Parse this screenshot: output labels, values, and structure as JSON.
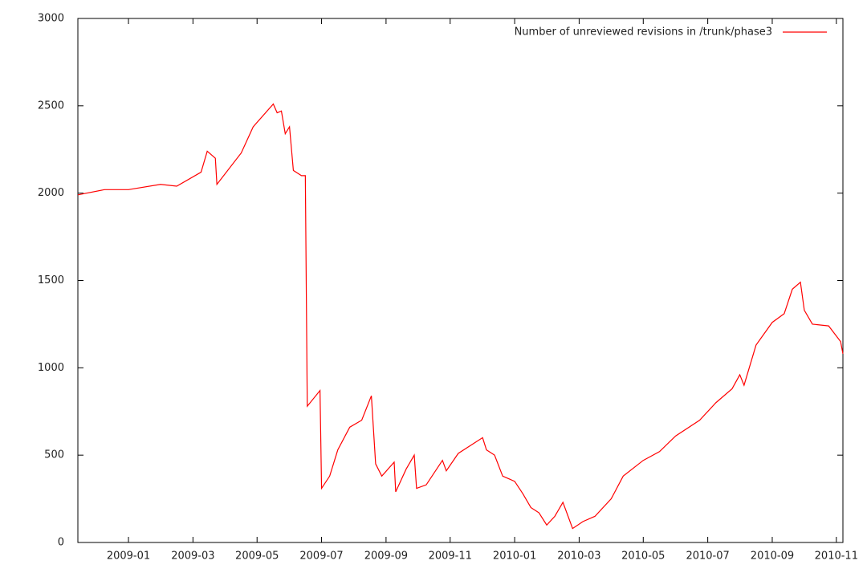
{
  "chart_data": {
    "type": "line",
    "x": [
      2008.869,
      2008.938,
      2009.0,
      2009.083,
      2009.125,
      2009.188,
      2009.204,
      2009.225,
      2009.229,
      2009.292,
      2009.323,
      2009.375,
      2009.385,
      2009.396,
      2009.406,
      2009.417,
      2009.427,
      2009.448,
      2009.458,
      2009.463,
      2009.496,
      2009.5,
      2009.521,
      2009.542,
      2009.573,
      2009.604,
      2009.629,
      2009.64,
      2009.656,
      2009.688,
      2009.692,
      2009.719,
      2009.74,
      2009.746,
      2009.771,
      2009.813,
      2009.823,
      2009.854,
      2009.917,
      2009.927,
      2009.948,
      2009.969,
      2010.0,
      2010.021,
      2010.042,
      2010.063,
      2010.083,
      2010.104,
      2010.125,
      2010.135,
      2010.15,
      2010.177,
      2010.208,
      2010.25,
      2010.281,
      2010.333,
      2010.375,
      2010.417,
      2010.479,
      2010.521,
      2010.563,
      2010.583,
      2010.594,
      2010.625,
      2010.667,
      2010.698,
      2010.719,
      2010.74,
      2010.75,
      2010.771,
      2010.813,
      2010.844,
      2010.85
    ],
    "series": [
      {
        "name": "Number of unreviewed revisions in /trunk/phase3",
        "color": "#ff0000",
        "values": [
          1990,
          2020,
          2020,
          2050,
          2040,
          2120,
          2240,
          2200,
          2050,
          2230,
          2380,
          2510,
          2460,
          2470,
          2340,
          2380,
          2130,
          2100,
          2100,
          780,
          870,
          310,
          380,
          530,
          660,
          700,
          840,
          450,
          380,
          460,
          290,
          420,
          500,
          310,
          330,
          470,
          410,
          510,
          600,
          530,
          500,
          380,
          350,
          280,
          200,
          170,
          100,
          150,
          230,
          170,
          80,
          120,
          150,
          250,
          380,
          470,
          520,
          610,
          700,
          800,
          880,
          960,
          900,
          1130,
          1260,
          1310,
          1450,
          1490,
          1330,
          1250,
          1240,
          1150,
          1080
        ]
      }
    ],
    "xlim": [
      2008.869,
      2010.85
    ],
    "xticks": [
      {
        "value": 2009.0,
        "label": "2009-01"
      },
      {
        "value": 2009.167,
        "label": "2009-03"
      },
      {
        "value": 2009.333,
        "label": "2009-05"
      },
      {
        "value": 2009.5,
        "label": "2009-07"
      },
      {
        "value": 2009.667,
        "label": "2009-09"
      },
      {
        "value": 2009.833,
        "label": "2009-11"
      },
      {
        "value": 2010.0,
        "label": "2010-01"
      },
      {
        "value": 2010.167,
        "label": "2010-03"
      },
      {
        "value": 2010.333,
        "label": "2010-05"
      },
      {
        "value": 2010.5,
        "label": "2010-07"
      },
      {
        "value": 2010.667,
        "label": "2010-09"
      },
      {
        "value": 2010.833,
        "label": "2010-11"
      }
    ],
    "ylim": [
      0,
      3000
    ],
    "yticks": [
      0,
      500,
      1000,
      1500,
      2000,
      2500,
      3000
    ],
    "legend": "top-right",
    "grid": false
  }
}
